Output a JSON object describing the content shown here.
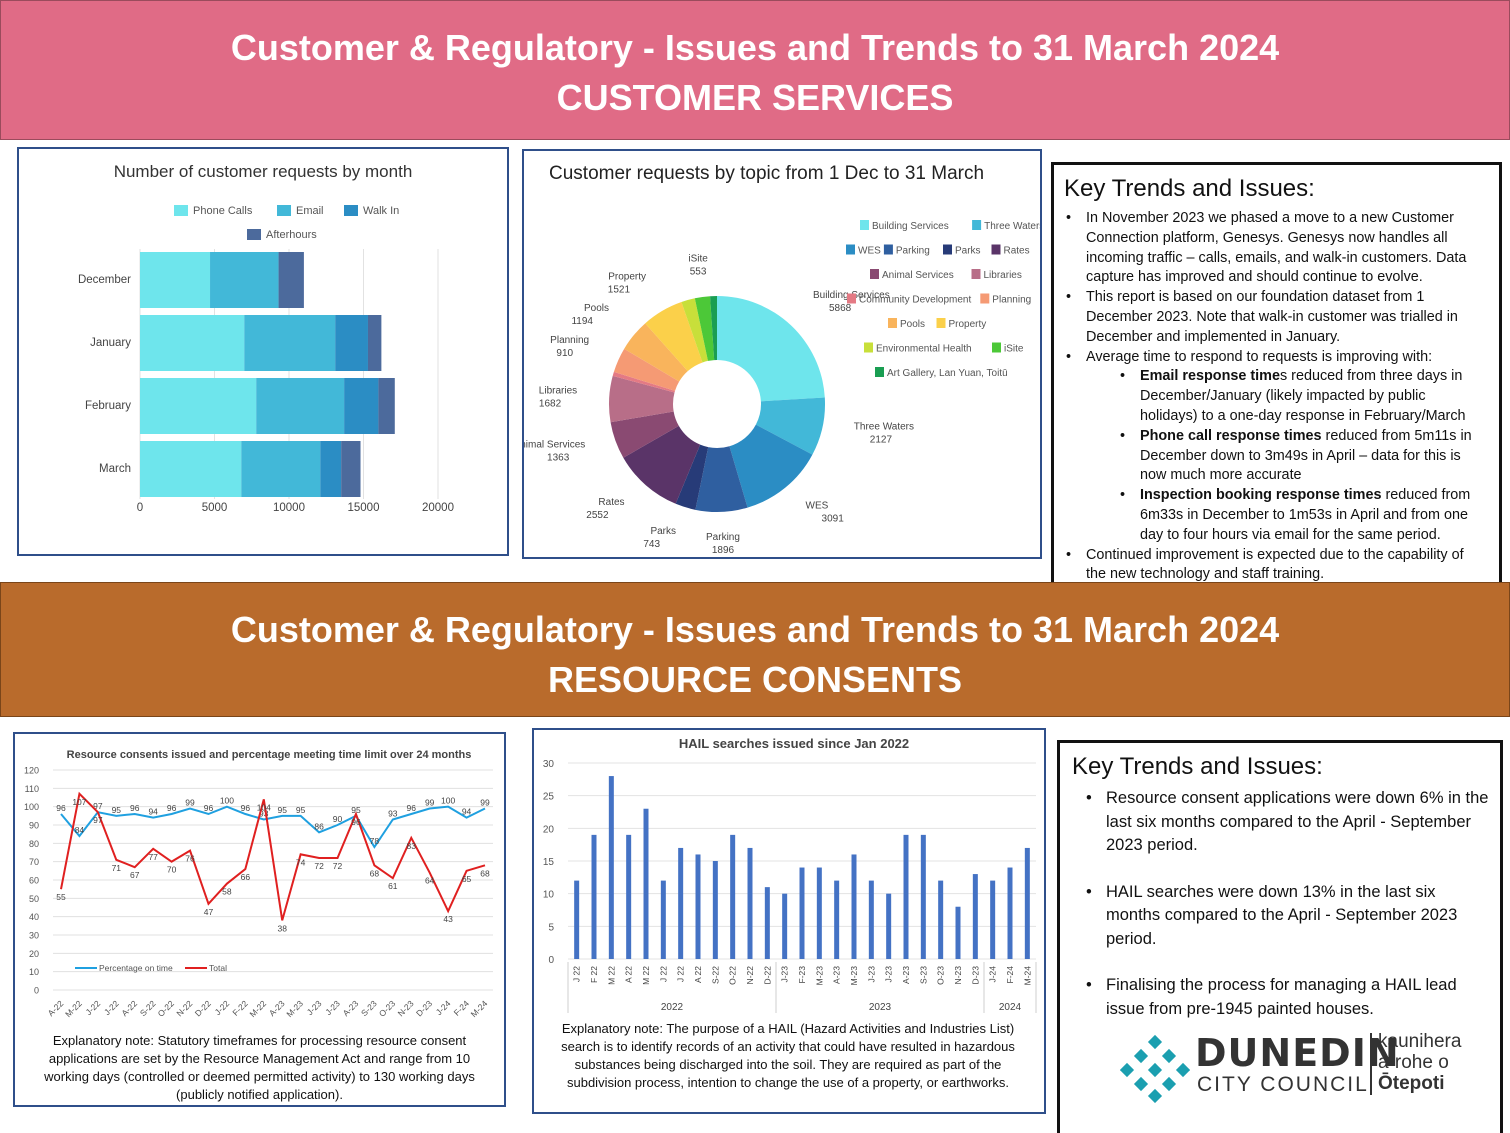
{
  "header1": {
    "line1": "Customer & Regulatory - Issues and Trends to 31 March 2024",
    "line2": "CUSTOMER SERVICES"
  },
  "header2": {
    "line1": "Customer & Regulatory - Issues and Trends to 31 March 2024",
    "line2": "RESOURCE CONSENTS"
  },
  "colors": {
    "band1": "#e06b86",
    "band2": "#b96b2c",
    "bar_blue": "#4472c4",
    "line_blue": "#1fa0e0",
    "line_red": "#e02020"
  },
  "chart_data": [
    {
      "id": "requests_by_month",
      "type": "bar",
      "orientation": "horizontal",
      "stacked": true,
      "title": "Number of customer requests by month",
      "categories": [
        "December",
        "January",
        "February",
        "March"
      ],
      "series": [
        {
          "name": "Phone Calls",
          "color": "#6ee5ec",
          "values": [
            4700,
            7000,
            7800,
            6800
          ]
        },
        {
          "name": "Email",
          "color": "#42b8d8",
          "values": [
            4600,
            6100,
            5900,
            5300
          ]
        },
        {
          "name": "Walk In",
          "color": "#2b8dc4",
          "values": [
            0,
            2200,
            2300,
            1400
          ]
        },
        {
          "name": "Afterhours",
          "color": "#4c6a9c",
          "values": [
            1700,
            900,
            1100,
            1300
          ]
        }
      ],
      "xlim": [
        0,
        20000
      ],
      "xticks": [
        "0",
        "5000",
        "10000",
        "15000",
        "20000"
      ],
      "legend": "top",
      "grid": true
    },
    {
      "id": "requests_by_topic",
      "type": "pie",
      "donut": true,
      "title": "Customer requests by topic from 1 Dec to 31 March",
      "slices": [
        {
          "name": "Building Services",
          "value": 5868,
          "label": "5868",
          "color": "#6ee5ec"
        },
        {
          "name": "Three Waters",
          "value": 2127,
          "label": "2127",
          "color": "#42b8d8"
        },
        {
          "name": "WES",
          "value": 3091,
          "label": "3091",
          "color": "#2b8dc4"
        },
        {
          "name": "Parking",
          "value": 1896,
          "label": "1896",
          "color": "#2f5fa0"
        },
        {
          "name": "Parks",
          "value": 743,
          "label": "743",
          "color": "#273b78"
        },
        {
          "name": "Rates",
          "value": 2552,
          "label": "2552",
          "color": "#5a3468"
        },
        {
          "name": "Animal Services",
          "value": 1363,
          "label": "1363",
          "color": "#8a4a72"
        },
        {
          "name": "Libraries",
          "value": 1682,
          "label": "1682",
          "color": "#b86e88"
        },
        {
          "name": "Community Development",
          "value": 150,
          "label": "",
          "color": "#e47a84"
        },
        {
          "name": "Planning",
          "value": 910,
          "label": "910",
          "color": "#f59a74"
        },
        {
          "name": "Pools",
          "value": 1194,
          "label": "1194",
          "color": "#f9b45c"
        },
        {
          "name": "Property",
          "value": 1521,
          "label": "1521",
          "color": "#fbd04a"
        },
        {
          "name": "Environmental Health",
          "value": 500,
          "label": "",
          "color": "#c8df3a"
        },
        {
          "name": "iSite",
          "value": 553,
          "label": "553",
          "color": "#4cc838"
        },
        {
          "name": "Art Gallery, Lan Yuan, Toitū",
          "value": 250,
          "label": "",
          "color": "#1a9e52"
        }
      ],
      "legend": "right"
    },
    {
      "id": "consents_issued",
      "type": "line",
      "title": "Resource consents issued and percentage meeting time limit over 24 months",
      "x": [
        "A-22",
        "M-22",
        "J-22",
        "J-22",
        "A-22",
        "S-22",
        "O-22",
        "N-22",
        "D-22",
        "J-22",
        "F-22",
        "M-22",
        "A-23",
        "M-23",
        "J-23",
        "J-23",
        "A-23",
        "S-23",
        "O-23",
        "N-23",
        "D-23",
        "J-24",
        "F-24",
        "M-24"
      ],
      "series": [
        {
          "name": "Percentage on time",
          "color": "#1fa0e0",
          "values": [
            96,
            84,
            97,
            95,
            96,
            94,
            96,
            99,
            96,
            100,
            96,
            93,
            95,
            95,
            86,
            90,
            95,
            78,
            93,
            96,
            99,
            100,
            94,
            99
          ]
        },
        {
          "name": "Total",
          "color": "#e02020",
          "values": [
            55,
            107,
            97,
            71,
            67,
            77,
            70,
            76,
            47,
            58,
            66,
            104,
            38,
            74,
            72,
            72,
            96,
            68,
            61,
            83,
            64,
            43,
            65,
            68
          ]
        }
      ],
      "ylim": [
        0,
        120
      ],
      "yticks": [
        "0",
        "10",
        "20",
        "30",
        "40",
        "50",
        "60",
        "70",
        "80",
        "90",
        "100",
        "110",
        "120"
      ],
      "legend": "bottom-left",
      "grid": true
    },
    {
      "id": "hail_searches",
      "type": "bar",
      "title": "HAIL searches issued since Jan 2022",
      "categories": [
        "J 22",
        "F 22",
        "M 22",
        "A 22",
        "M 22",
        "J 22",
        "J 22",
        "A 22",
        "S-22",
        "O-22",
        "N-22",
        "D-22",
        "J-23",
        "F-23",
        "M-23",
        "A-23",
        "M-23",
        "J-23",
        "J-23",
        "A-23",
        "S-23",
        "O-23",
        "N-23",
        "D-23",
        "J-24",
        "F-24",
        "M-24"
      ],
      "values": [
        12,
        19,
        28,
        19,
        23,
        12,
        17,
        16,
        15,
        19,
        17,
        11,
        10,
        14,
        14,
        12,
        16,
        12,
        10,
        19,
        19,
        12,
        8,
        13,
        12,
        14,
        17
      ],
      "year_groups": [
        {
          "label": "2022",
          "count": 12
        },
        {
          "label": "2023",
          "count": 12
        },
        {
          "label": "2024",
          "count": 3
        }
      ],
      "ylim": [
        0,
        30
      ],
      "yticks": [
        "0",
        "5",
        "10",
        "15",
        "20",
        "25",
        "30"
      ],
      "grid": true
    }
  ],
  "key1": {
    "title": "Key Trends and Issues:",
    "b1": "In November 2023 we phased a move to a new Customer Connection platform, Genesys. Genesys now handles all incoming traffic – calls, emails, and walk-in customers. Data capture has improved and should continue to evolve.",
    "b2": "This report is based on our foundation dataset from 1 December 2023. Note that walk-in customer was trialled in December and implemented in January.",
    "b3": "Average time to respond to requests is improving with:",
    "s1_bold": "Email response time",
    "s1_rest": "s reduced from three days in December/January (likely impacted by public holidays) to a one-day response in February/March",
    "s2_bold": "Phone call response times",
    "s2_rest": " reduced from 5m11s in December down to 3m49s in April – data for this is now much more accurate",
    "s3_bold": "Inspection booking response times",
    "s3_rest": " reduced from 6m33s in December to 1m53s in April and from one day to four hours via email for the same period.",
    "b4": "Continued improvement is expected due to the capability of the new technology and staff training."
  },
  "key2": {
    "title": "Key Trends and Issues:",
    "b1": "Resource consent applications were down 6% in the last six months compared to the April - September 2023 period.",
    "b2": "HAIL searches were down 13% in the last six months compared to the April - September 2023 period.",
    "b3": "Finalising the process for managing a HAIL lead issue from pre-1945 painted houses."
  },
  "note1": "Explanatory note: Statutory timeframes for processing resource consent applications are set by the Resource Management Act and range from 10 working days (controlled or deemed permitted activity) to 130 working days (publicly notified application).",
  "note2": "Explanatory note: The purpose of a HAIL (Hazard Activities and Industries List) search is to identify records of an activity that could have resulted in hazardous substances being discharged into the soil. They are required as part of the subdivision process, intention to change the use of a property, or earthworks.",
  "logo": {
    "line1": "DUNEDIN",
    "line2": "CITY COUNCIL",
    "maori1": "kaunihera",
    "maori2": "a-rohe o",
    "maori3": "Ōtepoti"
  }
}
